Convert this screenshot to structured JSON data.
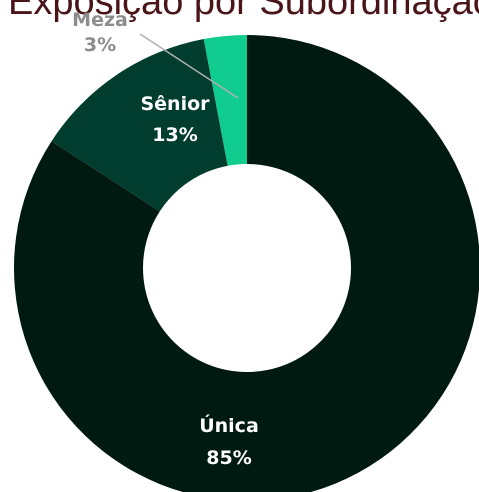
{
  "chart_data": {
    "type": "pie",
    "title": "Exposição por Subordinação",
    "categories": [
      "Única",
      "Sênior",
      "Meza"
    ],
    "values": [
      85,
      13,
      3
    ],
    "value_labels": [
      "85%",
      "13%",
      "3%"
    ],
    "colors": [
      "#001a12",
      "#003d2e",
      "#10cc8e"
    ],
    "donut": true
  },
  "colors": {
    "title": "#4a1518",
    "label_on_dark": "#ffffff",
    "label_outside": "#8c8c8c",
    "leader_line": "#b0b0b0"
  }
}
